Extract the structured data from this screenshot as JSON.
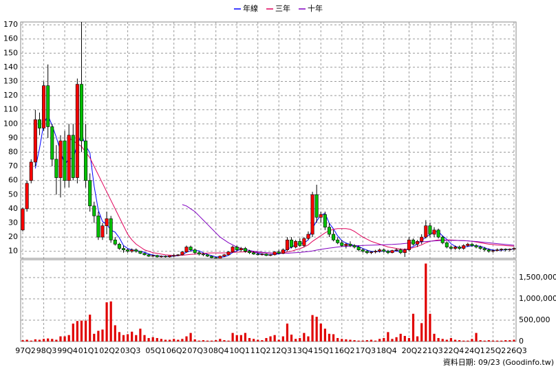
{
  "chart_data": [
    {
      "type": "candlestick",
      "up_color": "#ff0000",
      "down_color": "#00c000",
      "open": [
        25,
        40,
        60,
        73,
        103,
        97,
        127,
        98,
        75,
        62,
        88,
        60,
        92,
        62,
        128,
        88,
        60,
        42,
        35,
        20,
        28,
        33,
        18,
        15,
        12,
        11,
        10,
        11,
        10,
        8.5,
        7.5,
        6.5,
        7,
        6,
        6.5,
        6,
        6.8,
        7,
        7.5,
        9.5,
        13,
        11,
        9,
        8,
        7.5,
        6.5,
        5.5,
        5,
        6.5,
        7.5,
        9.5,
        13,
        11,
        12,
        10,
        9,
        8,
        7.5,
        8,
        7,
        7.5,
        9.5,
        8.5,
        11,
        18,
        13,
        17,
        14,
        19,
        22,
        50,
        34,
        36,
        27,
        22,
        18,
        16,
        14,
        15,
        14,
        13,
        11,
        10,
        9,
        9.5,
        10,
        11,
        10,
        9,
        10.5,
        11,
        9,
        11,
        18,
        15,
        17,
        20,
        28,
        22,
        25,
        20,
        16,
        13,
        12,
        13,
        12,
        14,
        15,
        14,
        13,
        12,
        11,
        10,
        10.5,
        11,
        11.5,
        11,
        11.5
      ],
      "high": [
        41,
        60,
        75,
        110,
        108,
        130,
        142,
        100,
        85,
        92,
        95,
        100,
        100,
        132,
        172,
        100,
        65,
        45,
        38,
        30,
        38,
        35,
        20,
        16,
        14,
        12,
        12,
        12,
        10,
        9,
        8,
        7.5,
        7.5,
        7,
        7,
        7,
        8,
        8,
        10,
        14,
        14,
        12,
        10,
        9,
        8,
        7,
        6,
        7,
        8,
        10,
        14,
        14,
        13,
        13,
        11,
        10,
        9,
        8.5,
        8.5,
        8,
        10,
        11,
        12,
        20,
        20,
        18,
        19,
        20,
        24,
        52,
        57,
        38,
        38,
        30,
        25,
        20,
        18,
        16,
        17,
        15,
        14,
        12,
        11,
        10,
        11,
        12,
        12,
        11,
        11,
        12,
        12,
        12,
        20,
        19,
        18,
        22,
        32,
        30,
        27,
        26,
        21,
        17,
        14,
        14,
        14,
        15,
        16,
        16,
        15,
        14,
        13,
        12,
        11,
        12,
        12,
        12,
        12,
        13
      ],
      "low": [
        24,
        38,
        58,
        70,
        92,
        95,
        90,
        70,
        50,
        48,
        55,
        55,
        60,
        58,
        80,
        55,
        38,
        30,
        18,
        18,
        22,
        16,
        14,
        11,
        9,
        9,
        9,
        9,
        8,
        7,
        6,
        6,
        5.5,
        5.5,
        5.5,
        5.5,
        6,
        6.5,
        7,
        9,
        10,
        8,
        7,
        6.5,
        6,
        5,
        5,
        5,
        6,
        7,
        9,
        10,
        10,
        9,
        8,
        7.5,
        7,
        7,
        6.5,
        6.5,
        7,
        8,
        8,
        10,
        12,
        12,
        13,
        13,
        18,
        20,
        30,
        30,
        25,
        20,
        17,
        15,
        13,
        12,
        13,
        12,
        10,
        9,
        8,
        8,
        8.5,
        9,
        9,
        8,
        8.5,
        10,
        8,
        6,
        10,
        14,
        13,
        15,
        19,
        20,
        20,
        19,
        15,
        12,
        11,
        11,
        11,
        11,
        13,
        13,
        12,
        11,
        10,
        9,
        9,
        10,
        10,
        10,
        10,
        10.5
      ],
      "close": [
        40,
        58,
        73,
        103,
        97,
        127,
        98,
        75,
        62,
        88,
        60,
        92,
        62,
        128,
        88,
        60,
        42,
        35,
        20,
        28,
        33,
        18,
        15,
        12,
        11,
        10,
        11,
        10,
        8.5,
        7.5,
        6.5,
        7,
        6,
        6.5,
        6,
        6.8,
        7,
        7.5,
        9.5,
        13,
        11,
        9,
        8,
        7.5,
        6.5,
        5.5,
        5,
        6.5,
        7.5,
        9.5,
        13,
        11,
        12,
        10,
        9,
        8,
        7.5,
        8,
        7,
        7.5,
        9.5,
        8.5,
        11,
        18,
        13,
        17,
        14,
        19,
        22,
        50,
        34,
        36,
        27,
        22,
        18,
        16,
        14,
        15,
        14,
        13,
        11,
        10,
        9,
        9.5,
        10,
        11,
        10,
        9,
        10.5,
        11,
        9,
        11,
        18,
        15,
        17,
        20,
        28,
        22,
        25,
        20,
        16,
        13,
        12,
        13,
        12,
        14,
        15,
        14,
        13,
        12,
        11,
        10,
        10.5,
        11,
        11.5,
        11,
        11.5,
        12
      ],
      "series": [
        {
          "name": "年線",
          "color": "#0000ff",
          "values": [
            null,
            null,
            null,
            68.5,
            82.8,
            100,
            106,
            99,
            90.5,
            80.8,
            71,
            75.5,
            75.5,
            85.5,
            92.5,
            84.5,
            79.5,
            56,
            39,
            31,
            29,
            25,
            23.5,
            19.5,
            14,
            12,
            11,
            10.5,
            9.9,
            9.3,
            8.1,
            7.4,
            6.8,
            6.5,
            6.4,
            6.3,
            6.6,
            6.8,
            7.7,
            9.3,
            10.3,
            10.6,
            10.3,
            8.9,
            7.8,
            6.9,
            6.1,
            5.9,
            6.1,
            7.1,
            9.1,
            10.3,
            11.4,
            11.5,
            10.5,
            9.8,
            8.6,
            8.1,
            7.6,
            7.5,
            8,
            8.1,
            9.1,
            11.8,
            12.6,
            14.8,
            15.5,
            15.8,
            18,
            26.3,
            31.3,
            35.5,
            36.8,
            29.8,
            25.8,
            20.8,
            17.5,
            15.8,
            14.8,
            14,
            13.3,
            12,
            10.8,
            9.9,
            9.6,
            9.9,
            10.1,
            10,
            10.1,
            10.1,
            9.9,
            10.4,
            12.3,
            13.3,
            15.3,
            17.5,
            20,
            21.8,
            23.8,
            23.8,
            20.8,
            18.5,
            15.3,
            13.5,
            12.5,
            12.8,
            13.5,
            13.8,
            14,
            13.5,
            12.5,
            11.5,
            10.9,
            10.6,
            10.8,
            11,
            11.3,
            11.5
          ]
        },
        {
          "name": "三年",
          "color": "#e0005a",
          "values": [
            null,
            null,
            null,
            null,
            null,
            null,
            null,
            null,
            null,
            null,
            null,
            90,
            88,
            86,
            84,
            80,
            76,
            70,
            64,
            58,
            52,
            46,
            40,
            34,
            28,
            22,
            18,
            15,
            13,
            11,
            10,
            9,
            8.5,
            8,
            7.5,
            7.3,
            7,
            7,
            7.2,
            7.5,
            7.8,
            8,
            8.3,
            8.5,
            8.7,
            8.8,
            8.8,
            8.8,
            8.8,
            9,
            9.2,
            9.4,
            9.5,
            9.6,
            9.6,
            9.5,
            9.3,
            9,
            8.8,
            8.6,
            8.5,
            8.5,
            8.8,
            9.5,
            10,
            11,
            11.8,
            13,
            14.5,
            17,
            19,
            21,
            23,
            24.5,
            25.5,
            26,
            26,
            26,
            25.5,
            24,
            22,
            20,
            18.5,
            17,
            16,
            15,
            14,
            13,
            12.5,
            12,
            11.5,
            11.3,
            11.8,
            12.5,
            13.5,
            14.5,
            16,
            17,
            17.5,
            18,
            18,
            18,
            18,
            17.8,
            17.5,
            17.5,
            17.3,
            17,
            16.5,
            16,
            15.5,
            15,
            14.7,
            14.4,
            14.2,
            14,
            13.8,
            13.6
          ]
        },
        {
          "name": "十年",
          "color": "#8000c0",
          "values": [
            null,
            null,
            null,
            null,
            null,
            null,
            null,
            null,
            null,
            null,
            null,
            null,
            null,
            null,
            null,
            null,
            null,
            null,
            null,
            null,
            null,
            null,
            null,
            null,
            null,
            null,
            null,
            null,
            null,
            null,
            null,
            null,
            null,
            null,
            null,
            null,
            null,
            null,
            43,
            42,
            40,
            38,
            35,
            32,
            29,
            26,
            23,
            20,
            18,
            16,
            14.5,
            13,
            12,
            11.2,
            10.5,
            10,
            9.6,
            9.3,
            9,
            8.8,
            8.6,
            8.5,
            8.5,
            8.6,
            8.8,
            9,
            9.2,
            9.5,
            9.8,
            10.2,
            10.8,
            11.3,
            11.8,
            12.2,
            12.6,
            13,
            13.3,
            13.5,
            13.7,
            13.9,
            14,
            14.1,
            14.2,
            14.3,
            14.4,
            14.5,
            14.6,
            14.7,
            14.8,
            15,
            15.2,
            15.5,
            15.8,
            16,
            16.3,
            16.6,
            16.9,
            17.1,
            17.3,
            17.5,
            17.6,
            17.7,
            17.7,
            17.7,
            17.6,
            17.5,
            17.3,
            17.1,
            16.9,
            16.6,
            16.3,
            16,
            15.7,
            15.4,
            15.1,
            14.8,
            14.5,
            14.2
          ]
        }
      ],
      "ylim": [
        5,
        172
      ],
      "yticks": [
        10,
        20,
        30,
        40,
        50,
        60,
        70,
        80,
        90,
        100,
        110,
        120,
        130,
        140,
        150,
        160,
        170
      ],
      "grid": true
    },
    {
      "type": "bar",
      "color": "#e00000",
      "categories": [
        "97Q2",
        null,
        null,
        null,
        null,
        "98Q3",
        null,
        null,
        null,
        null,
        "99Q4",
        null,
        null,
        null,
        null,
        "01Q1",
        null,
        null,
        null,
        null,
        "02Q2",
        null,
        null,
        null,
        null,
        "03Q3",
        null,
        null,
        null,
        null,
        null,
        "05Q1",
        null,
        null,
        null,
        null,
        "06Q2",
        null,
        null,
        null,
        null,
        "07Q3",
        null,
        null,
        null,
        null,
        "08Q4",
        null,
        null,
        null,
        null,
        "10Q1",
        null,
        null,
        null,
        null,
        "11Q2",
        null,
        null,
        null,
        null,
        "12Q3",
        null,
        null,
        null,
        null,
        "13Q4",
        null,
        null,
        null,
        null,
        "15Q1",
        null,
        null,
        null,
        null,
        "16Q2",
        null,
        null,
        null,
        null,
        "17Q3",
        null,
        null,
        null,
        null,
        "18Q4",
        null,
        null,
        null,
        null,
        null,
        "20Q2",
        null,
        null,
        null,
        null,
        "21Q3",
        null,
        null,
        null,
        null,
        "22Q4",
        null,
        null,
        null,
        null,
        "24Q1",
        null,
        null,
        null,
        null,
        "25Q2",
        null,
        null,
        null,
        null,
        "26Q3"
      ],
      "values": [
        30000,
        40000,
        20000,
        50000,
        40000,
        60000,
        70000,
        60000,
        40000,
        120000,
        120000,
        150000,
        420000,
        480000,
        490000,
        490000,
        630000,
        180000,
        250000,
        280000,
        920000,
        940000,
        380000,
        220000,
        150000,
        170000,
        230000,
        150000,
        300000,
        150000,
        80000,
        100000,
        80000,
        60000,
        40000,
        40000,
        60000,
        40000,
        60000,
        120000,
        200000,
        50000,
        20000,
        30000,
        20000,
        20000,
        30000,
        60000,
        30000,
        20000,
        200000,
        150000,
        150000,
        200000,
        80000,
        60000,
        40000,
        30000,
        80000,
        120000,
        150000,
        40000,
        120000,
        420000,
        160000,
        60000,
        80000,
        200000,
        120000,
        620000,
        580000,
        420000,
        300000,
        180000,
        170000,
        80000,
        60000,
        50000,
        40000,
        30000,
        20000,
        20000,
        30000,
        40000,
        20000,
        60000,
        80000,
        220000,
        60000,
        100000,
        180000,
        130000,
        80000,
        650000,
        120000,
        430000,
        1830000,
        650000,
        180000,
        80000,
        60000,
        40000,
        80000,
        40000,
        30000,
        20000,
        20000,
        60000,
        200000,
        30000,
        20000,
        30000,
        20000,
        20000,
        20000,
        30000,
        30000,
        40000
      ],
      "ylim": [
        0,
        1920000
      ],
      "yticks": [
        0,
        {
          "value": 500000,
          "label": "500,000"
        },
        {
          "value": 1000000,
          "label": "1,000,000"
        },
        {
          "value": 1500000,
          "label": "1,500,000"
        }
      ],
      "grid": true,
      "footnote": "資料日期: 09/23 (Goodinfo.tw)"
    }
  ]
}
